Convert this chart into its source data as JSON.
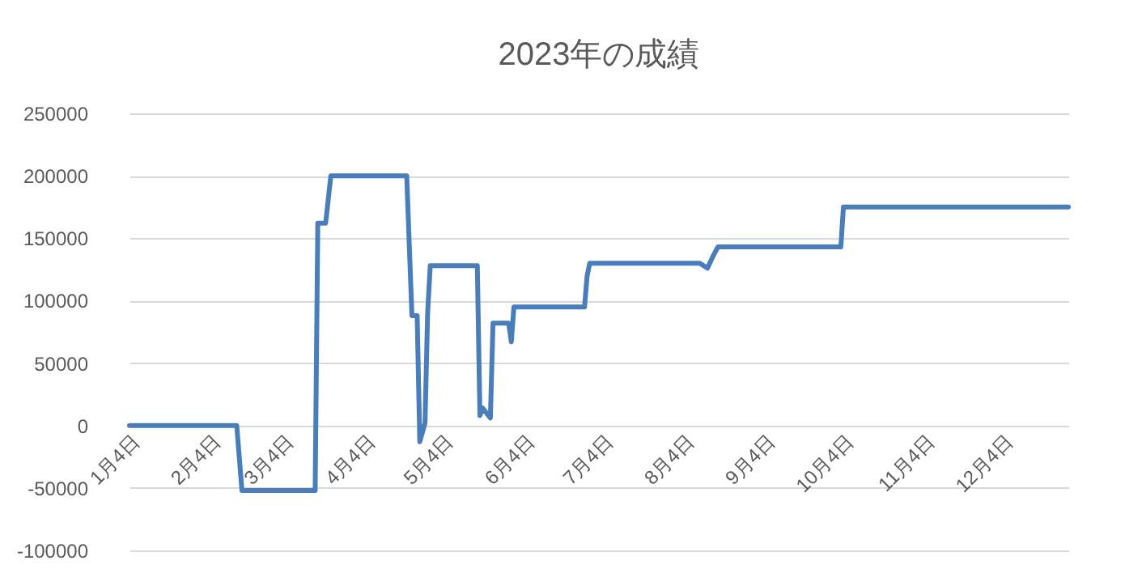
{
  "chart_data": {
    "type": "line",
    "title": "2023年の成績",
    "x": [
      "2023-01-04",
      "2023-02-14",
      "2023-02-16",
      "2023-03-16",
      "2023-03-17",
      "2023-03-20",
      "2023-03-22",
      "2023-04-20",
      "2023-04-22",
      "2023-04-24",
      "2023-04-25",
      "2023-04-27",
      "2023-04-28",
      "2023-04-29",
      "2023-05-17",
      "2023-05-18",
      "2023-05-19",
      "2023-05-22",
      "2023-05-23",
      "2023-05-29",
      "2023-05-30",
      "2023-05-31",
      "2023-06-27",
      "2023-06-28",
      "2023-06-29",
      "2023-08-10",
      "2023-08-13",
      "2023-08-15",
      "2023-08-17",
      "2023-10-03",
      "2023-10-04",
      "2023-12-29"
    ],
    "values": [
      0,
      0,
      -52000,
      -52000,
      162000,
      162000,
      200000,
      200000,
      88000,
      88000,
      -13000,
      2000,
      90000,
      128000,
      128000,
      8000,
      14000,
      6000,
      82000,
      82000,
      67000,
      95000,
      95000,
      120000,
      130000,
      130000,
      126000,
      135000,
      143000,
      143000,
      175000,
      175000
    ],
    "color": "#4a7ebb",
    "xlim": [
      "2023-01-04",
      "2023-12-29"
    ],
    "xticks": [
      {
        "value": "2023-01-04",
        "label": "1月4日"
      },
      {
        "value": "2023-02-04",
        "label": "2月4日"
      },
      {
        "value": "2023-03-04",
        "label": "3月4日"
      },
      {
        "value": "2023-04-04",
        "label": "4月4日"
      },
      {
        "value": "2023-05-04",
        "label": "5月4日"
      },
      {
        "value": "2023-06-04",
        "label": "6月4日"
      },
      {
        "value": "2023-07-04",
        "label": "7月4日"
      },
      {
        "value": "2023-08-04",
        "label": "8月4日"
      },
      {
        "value": "2023-09-04",
        "label": "9月4日"
      },
      {
        "value": "2023-10-04",
        "label": "10月4日"
      },
      {
        "value": "2023-11-04",
        "label": "11月4日"
      },
      {
        "value": "2023-12-04",
        "label": "12月4日"
      }
    ],
    "ylim": [
      -100000,
      250000
    ],
    "yticks": [
      -100000,
      -50000,
      0,
      50000,
      100000,
      150000,
      200000,
      250000
    ],
    "grid": "y"
  }
}
